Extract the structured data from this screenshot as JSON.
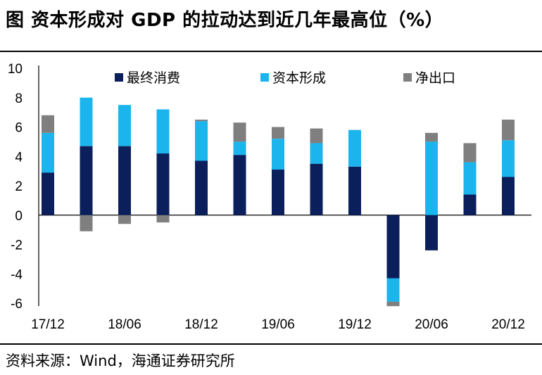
{
  "title": "图  资本形成对 GDP 的拉动达到近几年最高位（%）",
  "source": "资料来源：Wind，海通证券研究所",
  "colors": {
    "consumption": "#0b1f5c",
    "capital": "#1bb4ec",
    "net_exports": "#7f7f7f"
  },
  "chart_data": {
    "type": "bar",
    "stacked": true,
    "title": "资本形成对 GDP 的拉动达到近几年最高位（%）",
    "xlabel": "",
    "ylabel": "",
    "ylim": [
      -6,
      10
    ],
    "yticks": [
      10,
      8,
      6,
      4,
      2,
      0,
      -2,
      -4,
      -6
    ],
    "grid": false,
    "legend_position": "top",
    "categories": [
      "17/12",
      "18/03",
      "18/06",
      "18/09",
      "18/12",
      "19/03",
      "19/06",
      "19/09",
      "19/12",
      "20/03",
      "20/06",
      "20/09",
      "20/12"
    ],
    "x_tick_labels": [
      "17/12",
      "18/06",
      "18/12",
      "19/06",
      "19/12",
      "20/06",
      "20/12"
    ],
    "series": [
      {
        "name": "最终消费",
        "color_key": "consumption",
        "values": [
          2.9,
          4.7,
          4.7,
          4.2,
          3.7,
          4.1,
          3.1,
          3.5,
          3.3,
          -4.3,
          -2.4,
          1.4,
          2.6
        ]
      },
      {
        "name": "资本形成",
        "color_key": "capital",
        "values": [
          2.7,
          3.3,
          2.8,
          3.0,
          2.7,
          0.9,
          2.1,
          1.4,
          2.5,
          -1.6,
          5.0,
          2.2,
          2.5
        ]
      },
      {
        "name": "净出口",
        "color_key": "net_exports",
        "values": [
          1.2,
          -1.1,
          -0.6,
          -0.5,
          0.1,
          1.3,
          0.8,
          1.0,
          0.0,
          -0.3,
          0.6,
          1.3,
          1.4
        ]
      }
    ]
  }
}
